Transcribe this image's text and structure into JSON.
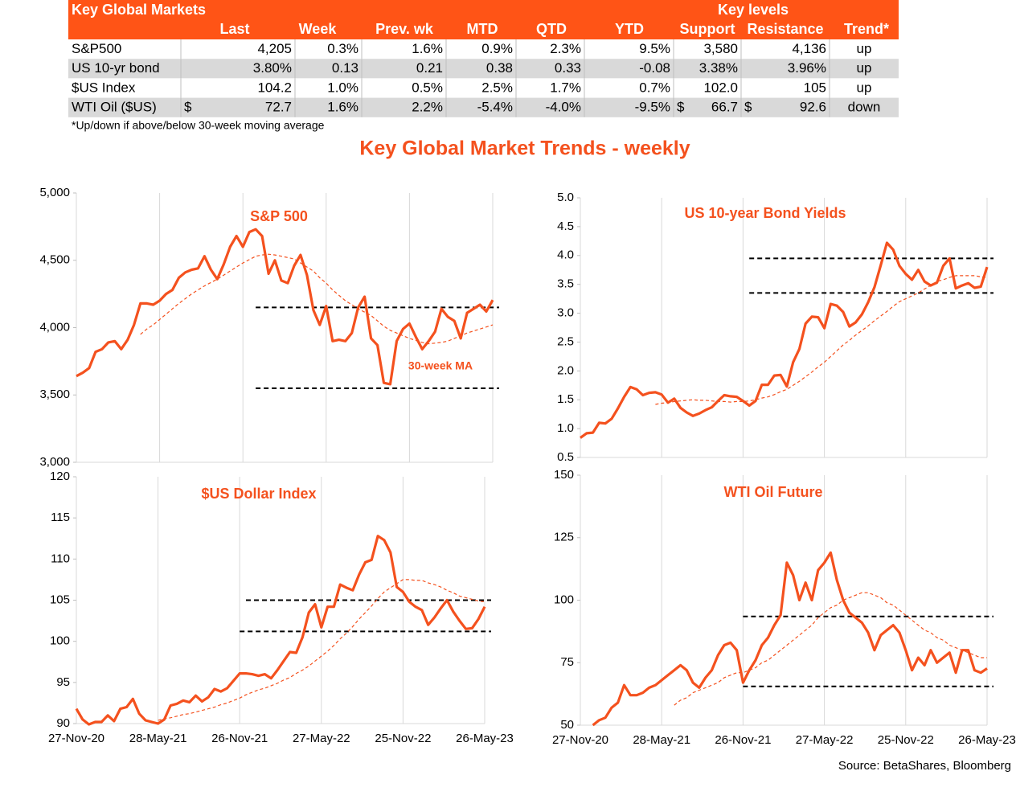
{
  "table": {
    "title": "Key Global Markets",
    "group_label": "Key levels",
    "columns": [
      "Last",
      "Week",
      "Prev. wk",
      "MTD",
      "QTD",
      "YTD",
      "Support",
      "Resistance",
      "Trend*"
    ],
    "rows": [
      {
        "name": "S&P500",
        "cells": [
          "4,205",
          "0.3%",
          "1.6%",
          "0.9%",
          "2.3%",
          "9.5%",
          "3,580",
          "4,136",
          "up"
        ]
      },
      {
        "name": "US 10-yr bond",
        "cells": [
          "3.80%",
          "0.13",
          "0.21",
          "0.38",
          "0.33",
          "-0.08",
          "3.38%",
          "3.96%",
          "up"
        ]
      },
      {
        "name": "$US Index",
        "cells": [
          "104.2",
          "1.0%",
          "0.5%",
          "2.5%",
          "1.7%",
          "0.7%",
          "102.0",
          "105",
          "up"
        ]
      },
      {
        "name": "WTI Oil ($US)",
        "cells": [
          {
            "prefix": "$",
            "text": "72.7"
          },
          "1.6%",
          "2.2%",
          "-5.4%",
          "-4.0%",
          "-9.5%",
          {
            "prefix": "$",
            "text": "66.7"
          },
          {
            "prefix": "$",
            "text": "92.6"
          },
          "down"
        ]
      }
    ],
    "footnote": "*Up/down if above/below 30-week moving average"
  },
  "page_title": "Key Global Market Trends - weekly",
  "source": "Source:  BetaShares, Bloomberg",
  "chart_data": [
    {
      "type": "line",
      "title": "S&P 500",
      "annotation": "30-week MA",
      "ylim": [
        3000,
        5000
      ],
      "yticks": [
        {
          "value": 3000,
          "label": "3,000"
        },
        {
          "value": 3500,
          "label": "3,500"
        },
        {
          "value": 4000,
          "label": "4,000"
        },
        {
          "value": 4500,
          "label": "4,500"
        },
        {
          "value": 5000,
          "label": "5,000"
        }
      ],
      "hlines": [
        {
          "value": 4150,
          "from": 28
        },
        {
          "value": 3550,
          "from": 28
        }
      ],
      "series": [
        {
          "color": "#F4511E",
          "line_style": "solid",
          "values": [
            3640,
            3665,
            3700,
            3820,
            3840,
            3890,
            3900,
            3840,
            3910,
            4020,
            4180,
            4180,
            4170,
            4200,
            4250,
            4280,
            4370,
            4410,
            4430,
            4440,
            4530,
            4430,
            4360,
            4470,
            4600,
            4680,
            4600,
            4710,
            4730,
            4680,
            4400,
            4500,
            4350,
            4330,
            4460,
            4540,
            4390,
            4130,
            4020,
            4160,
            3900,
            3910,
            3900,
            3960,
            4150,
            4230,
            3920,
            3870,
            3590,
            3580,
            3900,
            3990,
            4030,
            3930,
            3840,
            3900,
            3970,
            4140,
            4080,
            4050,
            3920,
            4110,
            4140,
            4170,
            4120,
            4205
          ]
        },
        {
          "color": "#F4511E",
          "line_style": "dashed",
          "values": [
            null,
            null,
            null,
            null,
            null,
            null,
            null,
            null,
            null,
            null,
            3950,
            3990,
            4020,
            4060,
            4100,
            4140,
            4180,
            4215,
            4250,
            4280,
            4310,
            4335,
            4360,
            4390,
            4420,
            4450,
            4480,
            4505,
            4530,
            4540,
            4545,
            4540,
            4530,
            4520,
            4510,
            4480,
            4450,
            4420,
            4370,
            4330,
            4280,
            4240,
            4200,
            4170,
            4140,
            4115,
            4090,
            4050,
            4010,
            3980,
            3960,
            3940,
            3920,
            3905,
            3890,
            3880,
            3885,
            3890,
            3900,
            3920,
            3940,
            3960,
            3975,
            3990,
            4005,
            4020
          ]
        }
      ]
    },
    {
      "type": "line",
      "title": "US 10-year Bond Yields",
      "ylim": [
        0.5,
        5
      ],
      "yticks": [
        0.5,
        {
          "value": 1,
          "label": "1.0"
        },
        1.5,
        {
          "value": 2,
          "label": "2.0"
        },
        2.5,
        {
          "value": 3,
          "label": "3.0"
        },
        3.5,
        {
          "value": 4,
          "label": "4.0"
        },
        4.5,
        {
          "value": 5,
          "label": "5.0"
        }
      ],
      "hlines": [
        {
          "value": 3.95,
          "from": 27
        },
        {
          "value": 3.35,
          "from": 27
        }
      ],
      "series": [
        {
          "color": "#F4511E",
          "line_style": "solid",
          "values": [
            0.84,
            0.92,
            0.93,
            1.1,
            1.09,
            1.17,
            1.35,
            1.55,
            1.72,
            1.68,
            1.58,
            1.62,
            1.63,
            1.59,
            1.45,
            1.52,
            1.36,
            1.28,
            1.22,
            1.26,
            1.32,
            1.37,
            1.48,
            1.58,
            1.56,
            1.55,
            1.48,
            1.4,
            1.48,
            1.76,
            1.76,
            1.92,
            1.93,
            1.73,
            2.15,
            2.38,
            2.82,
            2.94,
            2.93,
            2.74,
            3.16,
            3.13,
            3.02,
            2.77,
            2.84,
            2.98,
            3.19,
            3.45,
            3.83,
            4.22,
            4.1,
            3.82,
            3.68,
            3.58,
            3.75,
            3.55,
            3.48,
            3.53,
            3.82,
            3.95,
            3.43,
            3.48,
            3.52,
            3.44,
            3.46,
            3.8
          ]
        },
        {
          "color": "#F4511E",
          "line_style": "dashed",
          "values": [
            null,
            null,
            null,
            null,
            null,
            null,
            null,
            null,
            null,
            null,
            null,
            null,
            1.42,
            1.44,
            1.45,
            1.47,
            1.48,
            1.49,
            1.5,
            1.49,
            1.49,
            1.48,
            1.47,
            1.47,
            1.46,
            1.47,
            1.47,
            1.48,
            1.5,
            1.53,
            1.55,
            1.59,
            1.64,
            1.68,
            1.75,
            1.82,
            1.9,
            1.98,
            2.07,
            2.15,
            2.25,
            2.35,
            2.45,
            2.53,
            2.62,
            2.7,
            2.78,
            2.87,
            2.95,
            3.03,
            3.12,
            3.2,
            3.25,
            3.3,
            3.35,
            3.42,
            3.48,
            3.55,
            3.58,
            3.62,
            3.65,
            3.65,
            3.65,
            3.65,
            3.63,
            3.62
          ]
        }
      ]
    },
    {
      "type": "line",
      "title": "$US Dollar Index",
      "categories": [
        "27-Nov-20",
        null,
        null,
        null,
        null,
        null,
        null,
        null,
        null,
        null,
        null,
        null,
        null,
        "28-May-21",
        null,
        null,
        null,
        null,
        null,
        null,
        null,
        null,
        null,
        null,
        null,
        null,
        "26-Nov-21",
        null,
        null,
        null,
        null,
        null,
        null,
        null,
        null,
        null,
        null,
        null,
        null,
        "27-May-22",
        null,
        null,
        null,
        null,
        null,
        null,
        null,
        null,
        null,
        null,
        null,
        null,
        "25-Nov-22",
        null,
        null,
        null,
        null,
        null,
        null,
        null,
        null,
        null,
        null,
        null,
        null,
        "26-May-23"
      ],
      "ylim": [
        90,
        120
      ],
      "yticks": [
        90,
        95,
        100,
        105,
        110,
        115,
        120
      ],
      "hlines": [
        {
          "value": 105,
          "from": 27
        },
        {
          "value": 101.2,
          "from": 26
        }
      ],
      "series": [
        {
          "color": "#F4511E",
          "line_style": "solid",
          "values": [
            91.8,
            90.5,
            89.9,
            90.2,
            90.2,
            91,
            90.3,
            91.8,
            92,
            93,
            91.2,
            90.4,
            90.2,
            90,
            90.5,
            92.2,
            92.4,
            92.8,
            92.6,
            93.4,
            92.7,
            93.2,
            94.2,
            93.9,
            94.3,
            95.2,
            96.1,
            96.1,
            96,
            95.8,
            96,
            95.5,
            96.5,
            97.6,
            98.7,
            98.6,
            100.5,
            103.5,
            104.5,
            101.7,
            104.2,
            104.2,
            106.9,
            106.5,
            106.2,
            108.1,
            109.6,
            109.9,
            112.8,
            112.3,
            110.8,
            106.6,
            106,
            104.8,
            104.2,
            103.8,
            102,
            102.9,
            104,
            105,
            103.6,
            102.5,
            101.5,
            101.6,
            102.7,
            104.2
          ]
        },
        {
          "color": "#F4511E",
          "line_style": "dashed",
          "values": [
            null,
            null,
            null,
            null,
            null,
            null,
            null,
            null,
            null,
            null,
            null,
            null,
            null,
            90.4,
            90.6,
            90.7,
            90.9,
            91.1,
            91.2,
            91.4,
            91.6,
            91.8,
            92,
            92.3,
            92.5,
            92.8,
            93.1,
            93.5,
            93.8,
            94.1,
            94.3,
            94.6,
            94.9,
            95.3,
            95.6,
            96.1,
            96.5,
            97,
            97.6,
            98.2,
            98.8,
            99.5,
            100.3,
            101,
            101.8,
            102.7,
            103.5,
            104.3,
            105.2,
            106,
            106.5,
            107,
            107.5,
            107.5,
            107.4,
            107.4,
            107.1,
            106.9,
            106.6,
            106.2,
            105.9,
            105.5,
            105.3,
            105.1,
            104.9,
            104.8
          ]
        }
      ]
    },
    {
      "type": "line",
      "title": "WTI Oil Future",
      "categories": [
        "27-Nov-20",
        null,
        null,
        null,
        null,
        null,
        null,
        null,
        null,
        null,
        null,
        null,
        null,
        "28-May-21",
        null,
        null,
        null,
        null,
        null,
        null,
        null,
        null,
        null,
        null,
        null,
        null,
        "26-Nov-21",
        null,
        null,
        null,
        null,
        null,
        null,
        null,
        null,
        null,
        null,
        null,
        null,
        "27-May-22",
        null,
        null,
        null,
        null,
        null,
        null,
        null,
        null,
        null,
        null,
        null,
        null,
        "25-Nov-22",
        null,
        null,
        null,
        null,
        null,
        null,
        null,
        null,
        null,
        null,
        null,
        null,
        "26-May-23"
      ],
      "ylim": [
        50,
        150
      ],
      "yticks": [
        50,
        75,
        100,
        125,
        150
      ],
      "hlines": [
        {
          "value": 93.5,
          "from": 26
        },
        {
          "value": 65.5,
          "from": 26
        }
      ],
      "series": [
        {
          "color": "#F4511E",
          "line_style": "solid",
          "values": [
            null,
            null,
            50,
            52,
            53,
            57,
            59,
            66,
            62,
            62,
            63,
            65,
            66,
            68,
            70,
            72,
            74,
            72,
            67,
            65,
            69,
            72,
            78,
            82,
            83,
            80,
            67,
            72,
            76,
            82,
            85,
            90,
            94,
            115,
            110,
            100,
            107,
            100,
            112,
            115,
            119,
            108,
            100,
            95,
            93,
            91,
            87,
            80,
            86,
            88,
            90,
            87,
            80,
            72,
            77,
            74,
            80,
            75,
            77,
            79,
            71,
            80,
            80,
            72,
            71,
            72.7
          ]
        },
        {
          "color": "#F4511E",
          "line_style": "dashed",
          "values": [
            null,
            null,
            null,
            null,
            null,
            null,
            null,
            null,
            null,
            null,
            null,
            null,
            null,
            null,
            null,
            58,
            60,
            61,
            63,
            64,
            65,
            66,
            67,
            69,
            70,
            71,
            71,
            72,
            73,
            75,
            76,
            78,
            80,
            82,
            84,
            86,
            88,
            90,
            93,
            95,
            97,
            98,
            100,
            101,
            102,
            103,
            103,
            102,
            101,
            99,
            98,
            96,
            94,
            92,
            90,
            88,
            87,
            85,
            84,
            82,
            81,
            80,
            79,
            78,
            77,
            77
          ]
        }
      ]
    }
  ]
}
